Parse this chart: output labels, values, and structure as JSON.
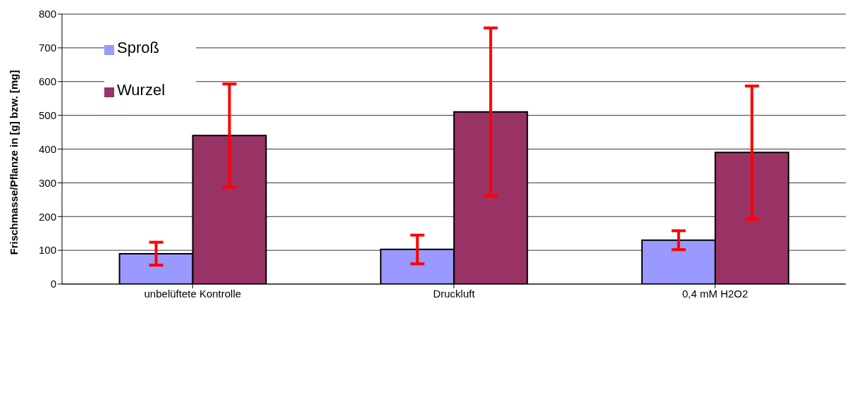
{
  "chart_data": {
    "type": "bar",
    "ylabel": "Frischmasse/Pflanze in [g] bzw.  [mg]",
    "categories": [
      "unbelüftete Kontrolle",
      "Druckluft",
      "0,4 mM H2O2"
    ],
    "series": [
      {
        "name": "Sproß",
        "color": "#9999ff",
        "values": [
          90,
          103,
          130
        ],
        "errors": [
          [
            56,
            124
          ],
          [
            60,
            145
          ],
          [
            102,
            158
          ]
        ]
      },
      {
        "name": "Wurzel",
        "color": "#993366",
        "values": [
          440,
          510,
          390
        ],
        "errors": [
          [
            287,
            593
          ],
          [
            262,
            759
          ],
          [
            192,
            587
          ]
        ]
      }
    ],
    "ylim": [
      0,
      800
    ],
    "yticks": [
      0,
      100,
      200,
      300,
      400,
      500,
      600,
      700,
      800
    ],
    "grid": "y",
    "legend": "top left"
  }
}
